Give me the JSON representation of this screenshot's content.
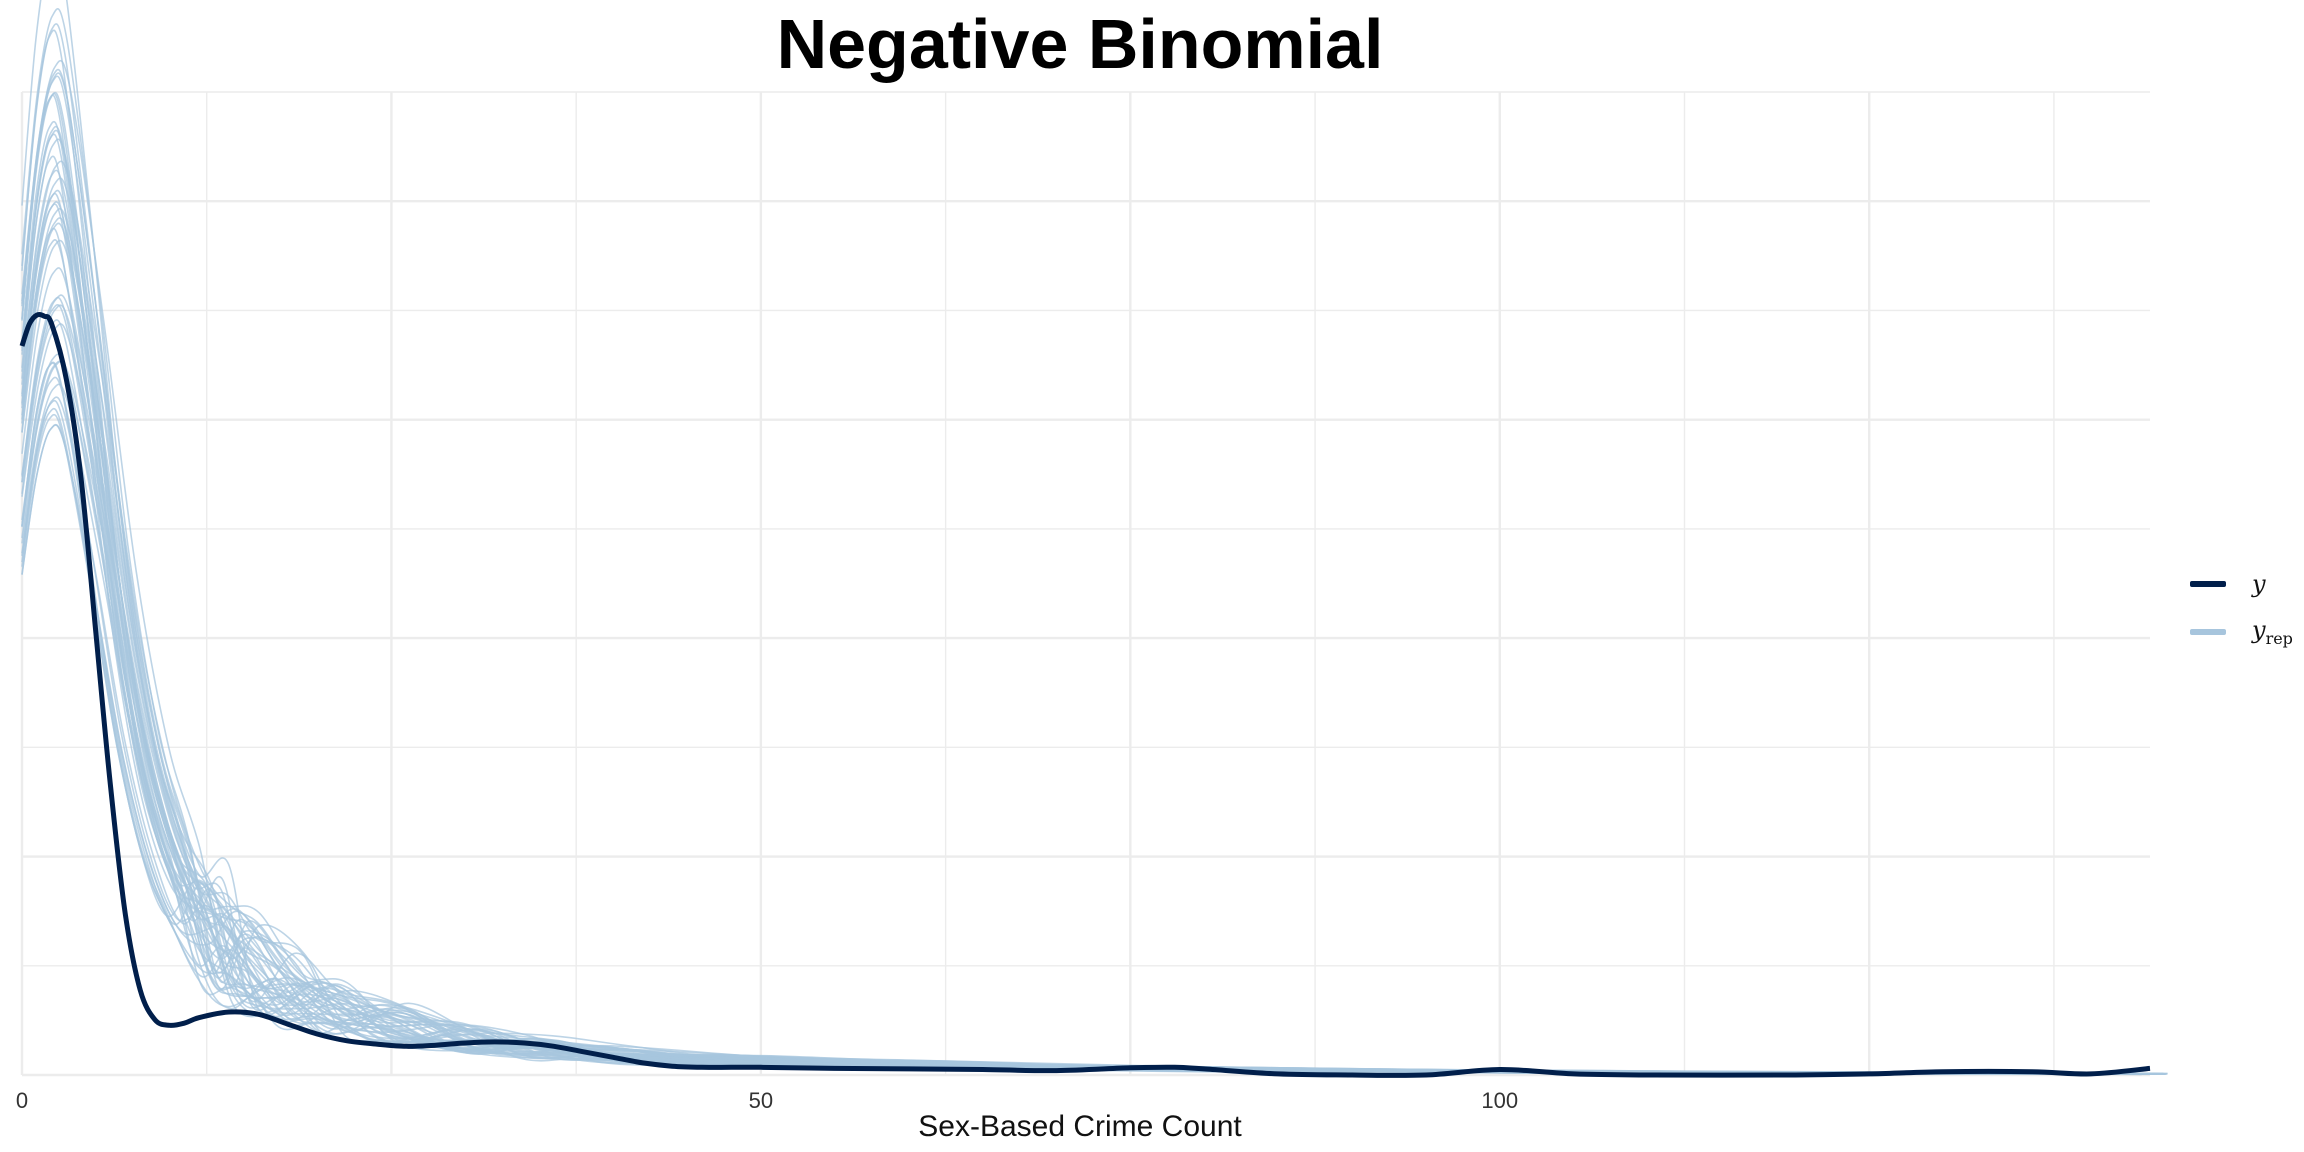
{
  "chart_data": {
    "type": "line",
    "title": "Negative Binomial",
    "xlabel": "Sex-Based Crime Count",
    "ylabel": "",
    "xlim": [
      0,
      144
    ],
    "ylim": [
      0,
      0.089
    ],
    "x_ticks": [
      0,
      50,
      100
    ],
    "y_ticks_shown": false,
    "grid": true,
    "legend_position": "right",
    "series": [
      {
        "name": "y",
        "color": "#011f4b",
        "x": [
          0,
          0.5,
          1,
          1.5,
          2,
          3,
          4,
          5,
          6,
          7,
          8,
          9,
          10,
          11,
          12,
          14,
          16,
          18,
          20,
          22,
          24,
          26,
          28,
          30,
          32,
          34,
          36,
          38,
          40,
          42,
          44,
          46,
          48,
          50,
          55,
          60,
          65,
          70,
          75,
          78,
          80,
          85,
          90,
          95,
          100,
          105,
          110,
          120,
          125,
          130,
          136,
          140,
          144
        ],
        "y": [
          0.066,
          0.068,
          0.0688,
          0.0687,
          0.068,
          0.063,
          0.054,
          0.04,
          0.026,
          0.0145,
          0.0077,
          0.005,
          0.0045,
          0.0047,
          0.0052,
          0.0057,
          0.0055,
          0.0046,
          0.0037,
          0.0031,
          0.0028,
          0.0026,
          0.0027,
          0.0029,
          0.003,
          0.0029,
          0.0026,
          0.0021,
          0.0016,
          0.0011,
          0.0008,
          0.0007,
          0.0007,
          0.0007,
          0.0006,
          0.00055,
          0.0005,
          0.0004,
          0.00065,
          0.0007,
          0.00055,
          0.0001,
          0.0,
          0.0,
          0.0005,
          0.0001,
          0.0,
          0.0,
          0.0001,
          0.0003,
          0.0003,
          0.0001,
          0.0006
        ]
      },
      {
        "name": "y",
        "name_sub": "rep",
        "color": "#a7c5dd",
        "x": [
          0,
          1,
          2,
          3,
          5,
          7,
          9,
          11,
          13,
          15,
          18,
          21,
          25,
          30,
          35,
          40,
          50,
          60,
          80,
          100,
          120,
          144
        ],
        "y": [
          0.062,
          0.074,
          0.08,
          0.078,
          0.06,
          0.04,
          0.026,
          0.018,
          0.013,
          0.01,
          0.0075,
          0.0058,
          0.0044,
          0.0032,
          0.0024,
          0.0018,
          0.0012,
          0.0009,
          0.0005,
          0.0003,
          0.0002,
          0.0001
        ],
        "replicate_count": 50
      }
    ]
  }
}
